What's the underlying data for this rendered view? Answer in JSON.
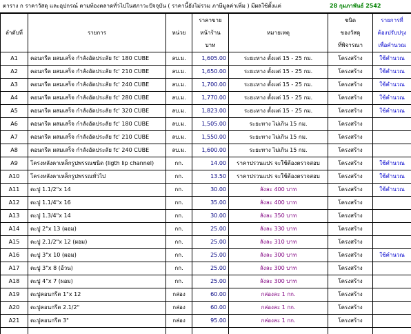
{
  "header": {
    "title": "ตาราง  ก  ราคาวัสดุ และอุปกรณ์ ตามท้องตลาดทั่วไปในสภาวะปัจจุบัน ( ราคานี้ยังไม่รวม ภาษีมูลค่าเพิ่ม )    มีผลใช้ตั้งแต่",
    "date": "28 กุมภาพันธ์ 2542"
  },
  "table": {
    "columns": [
      [
        "ลำดับที่"
      ],
      [
        "รายการ"
      ],
      [
        "หน่วย"
      ],
      [
        "ราคาขาย",
        "หน้าร้าน",
        "บาท"
      ],
      [
        "หมายเหตุ"
      ],
      [
        "ชนิด",
        "ของวัสดุ",
        "ที่พิจารณา"
      ],
      [
        "รายการที่",
        "ต้องปรับปรุง",
        "เพื่อคำนวณ"
      ]
    ],
    "rows": [
      [
        "A1",
        "คอนกรีต ผสมเสร็จ กำลังอัดประลัย fc' 180 CUBE",
        "ลบ.ม.",
        "1,605.00",
        "ระยะทาง ตั้งแต่ 15 - 25 กม.",
        "โครงสร้าง",
        "ใช้คำนวณ"
      ],
      [
        "A2",
        "คอนกรีต ผสมเสร็จ กำลังอัดประลัย fc' 210 CUBE",
        "ลบ.ม.",
        "1,650.00",
        "ระยะทาง ตั้งแต่ 15 - 25 กม.",
        "โครงสร้าง",
        "ใช้คำนวณ"
      ],
      [
        "A3",
        "คอนกรีต ผสมเสร็จ กำลังอัดประลัย fc' 240 CUBE",
        "ลบ.ม.",
        "1,700.00",
        "ระยะทาง ตั้งแต่ 15 - 25 กม.",
        "โครงสร้าง",
        "ใช้คำนวณ"
      ],
      [
        "A4",
        "คอนกรีต ผสมเสร็จ กำลังอัดประลัย fc' 280 CUBE",
        "ลบ.ม.",
        "1,770.00",
        "ระยะทาง ตั้งแต่ 15 - 25 กม.",
        "โครงสร้าง",
        "ใช้คำนวณ"
      ],
      [
        "A5",
        "คอนกรีต ผสมเสร็จ กำลังอัดประลัย fc' 320 CUBE",
        "ลบ.ม.",
        "1,823.00",
        "ระยะทาง ตั้งแต่ 15 - 25 กม.",
        "โครงสร้าง",
        "ใช้คำนวณ"
      ],
      [
        "A6",
        "คอนกรีต ผสมเสร็จ กำลังอัดประลัย fc' 180 CUBE",
        "ลบ.ม.",
        "1,505.00",
        "ระยะทาง ไม่เกิน 15 กม.",
        "โครงสร้าง",
        null
      ],
      [
        "A7",
        "คอนกรีต ผสมเสร็จ กำลังอัดประลัย fc' 210 CUBE",
        "ลบ.ม.",
        "1,550.00",
        "ระยะทาง ไม่เกิน 15 กม.",
        "โครงสร้าง",
        null
      ],
      [
        "A8",
        "คอนกรีต ผสมเสร็จ กำลังอัดประลัย fc' 240 CUBE",
        "ลบ.ม.",
        "1,600.00",
        "ระยะทาง ไม่เกิน 15 กม.",
        "โครงสร้าง",
        null
      ],
      [
        "A9",
        "โครงหลังคาเหล็กรูปพรรณชนิด (ligth lip channel)",
        "กก.",
        "14.00",
        "ราคาปรวนแปร จะใช้ต้องตรวจสอบ",
        "โครงสร้าง",
        "ใช้คำนวณ"
      ],
      [
        "A10",
        "โครงหลังคาเหล็กรูปพรรณทั่วไป",
        "กก.",
        "13.50",
        "ราคาปรวนแปร จะใช้ต้องตรวจสอบ",
        "โครงสร้าง",
        "ใช้คำนวณ"
      ],
      [
        "A11",
        "ตะปู 1.1/2\"x 14",
        "กก.",
        "30.00",
        "ลังละ 400 บาท",
        "โครงสร้าง",
        "ใช้คำนวณ"
      ],
      [
        "A12",
        "ตะปู 1.1/4\"x 16",
        "กก.",
        "35.00",
        "ลังละ 400 บาท",
        "โครงสร้าง",
        null
      ],
      [
        "A13",
        "ตะปู 1.3/4\"x 14",
        "กก.",
        "30.00",
        "ลังละ 350 บาท",
        "โครงสร้าง",
        null
      ],
      [
        "A14",
        "ตะปู 2\"x 13 (ผอม)",
        "กก.",
        "25.00",
        "ลังละ 330 บาท",
        "โครงสร้าง",
        null
      ],
      [
        "A15",
        "ตะปู 2.1/2\"x 12 (ผอม)",
        "กก.",
        "25.00",
        "ลังละ 310 บาท",
        "โครงสร้าง",
        null
      ],
      [
        "A16",
        "ตะปู 3\"x 10 (ผอม)",
        "กก.",
        "25.00",
        "ลังละ 300 บาท",
        "โครงสร้าง",
        "ใช้คำนวณ"
      ],
      [
        "A17",
        "ตะปู 3\"x 8 (อ้วน)",
        "กก.",
        "25.00",
        "ลังละ 300 บาท",
        "โครงสร้าง",
        null
      ],
      [
        "A18",
        "ตะปู 4\"x 7 (ผอม)",
        "กก.",
        "25.00",
        "ลังละ 300 บาท",
        "โครงสร้าง",
        null
      ],
      [
        "A19",
        "ตะปูคอนกรีต 1\"x 12",
        "กล่อง",
        "60.00",
        "กล่องละ 1 กก.",
        "โครงสร้าง",
        null
      ],
      [
        "A20",
        "ตะปูคอนกรีต 2.1/2\"",
        "กล่อง",
        "60.00",
        "กล่องละ 1 กก.",
        "โครงสร้าง",
        null
      ],
      [
        "A21",
        "ตะปูคอนกรีต 3\"",
        "กล่อง",
        "95.00",
        "กล่องละ 1 กก.",
        "โครงสร้าง",
        null
      ]
    ]
  }
}
